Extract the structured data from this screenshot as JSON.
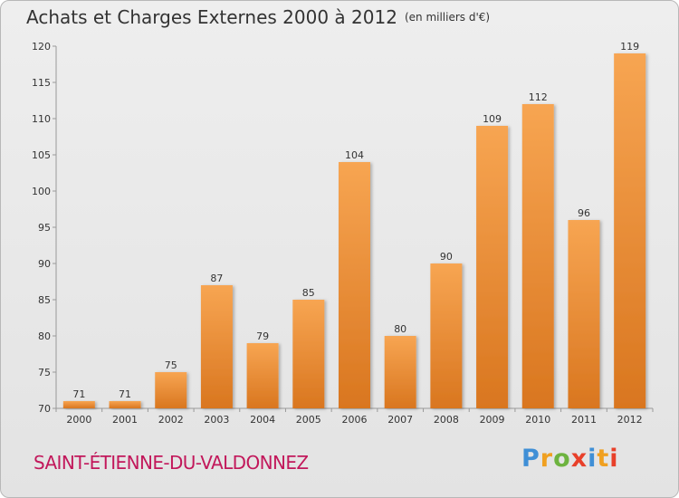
{
  "header": {
    "title": "Achats et Charges Externes 2000 à 2012",
    "unit": "(en milliers d'€)"
  },
  "footer": {
    "location": "SAINT-ÉTIENNE-DU-VALDONNEZ",
    "logo": "Proxiti"
  },
  "colors": {
    "bar_top": "#f7a552",
    "bar_bottom": "#d9761f",
    "location": "#c2185b",
    "grid": "#c8c8c8"
  },
  "chart_data": {
    "type": "bar",
    "title": "Achats et Charges Externes 2000 à 2012",
    "subtitle": "(en milliers d'€)",
    "xlabel": "",
    "ylabel": "",
    "categories": [
      "2000",
      "2001",
      "2002",
      "2003",
      "2004",
      "2005",
      "2006",
      "2007",
      "2008",
      "2009",
      "2010",
      "2011",
      "2012"
    ],
    "values": [
      71,
      71,
      75,
      87,
      79,
      85,
      104,
      80,
      90,
      109,
      112,
      96,
      119
    ],
    "ylim": [
      70,
      120
    ],
    "yticks": [
      70,
      75,
      80,
      85,
      90,
      95,
      100,
      105,
      110,
      115,
      120
    ],
    "grid": false
  }
}
